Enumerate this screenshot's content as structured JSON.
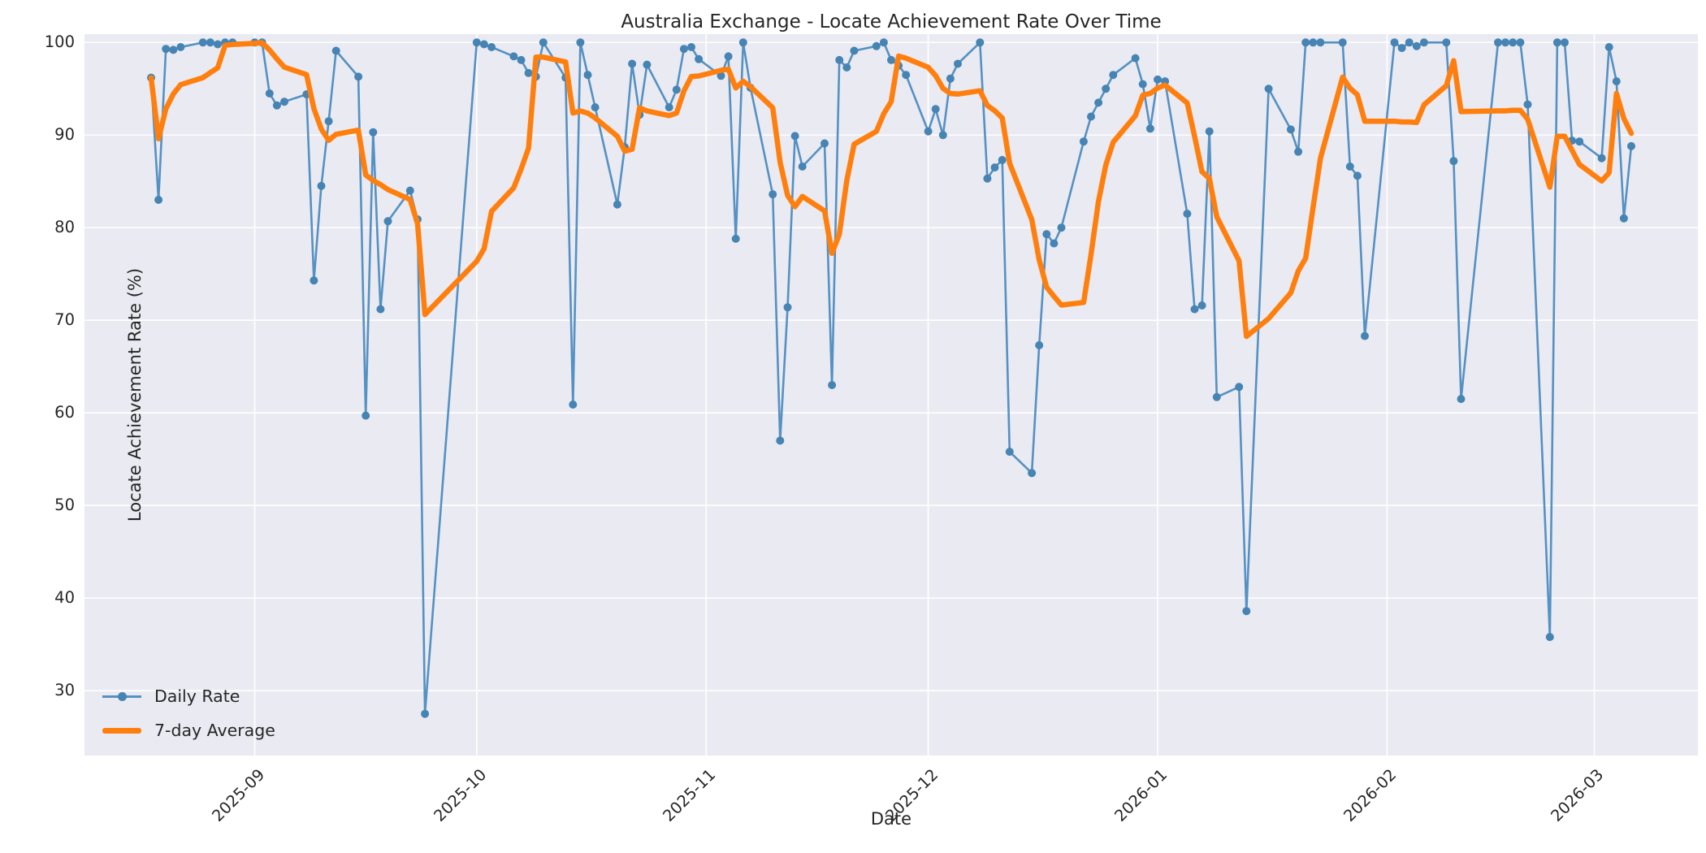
{
  "figure": {
    "background": "#ffffff",
    "plot_background": "#eaeaf2",
    "grid_color": "#ffffff",
    "text_color": "#262626",
    "daily_color": "#5591c2",
    "daily_marker_color": "#4684b4",
    "avg_color": "#ff7f0e"
  },
  "chart_data": {
    "type": "line",
    "title": "Australia Exchange - Locate Achievement Rate Over Time",
    "xlabel": "Date",
    "ylabel": "Locate Achievement Rate (%)",
    "grid": true,
    "legend_position": "lower left",
    "ylim": [
      23.0,
      100.9
    ],
    "xlim_dates": [
      "2025-08-09",
      "2026-03-15"
    ],
    "y_ticks": [
      30,
      40,
      50,
      60,
      70,
      80,
      90,
      100
    ],
    "x_ticks": [
      {
        "date": "2025-09-01",
        "label": "2025-09"
      },
      {
        "date": "2025-10-01",
        "label": "2025-10"
      },
      {
        "date": "2025-11-01",
        "label": "2025-11"
      },
      {
        "date": "2025-12-01",
        "label": "2025-12"
      },
      {
        "date": "2026-01-01",
        "label": "2026-01"
      },
      {
        "date": "2026-02-01",
        "label": "2026-02"
      },
      {
        "date": "2026-03-01",
        "label": "2026-03"
      }
    ],
    "series": [
      {
        "name": "Daily Rate",
        "style": "line_with_markers",
        "dates": [
          "2025-08-18",
          "2025-08-19",
          "2025-08-20",
          "2025-08-21",
          "2025-08-22",
          "2025-08-25",
          "2025-08-26",
          "2025-08-27",
          "2025-08-28",
          "2025-08-29",
          "2025-09-01",
          "2025-09-02",
          "2025-09-03",
          "2025-09-04",
          "2025-09-05",
          "2025-09-08",
          "2025-09-09",
          "2025-09-10",
          "2025-09-11",
          "2025-09-12",
          "2025-09-15",
          "2025-09-16",
          "2025-09-17",
          "2025-09-18",
          "2025-09-19",
          "2025-09-22",
          "2025-09-23",
          "2025-09-24",
          "2025-10-01",
          "2025-10-02",
          "2025-10-03",
          "2025-10-06",
          "2025-10-07",
          "2025-10-08",
          "2025-10-09",
          "2025-10-10",
          "2025-10-13",
          "2025-10-14",
          "2025-10-15",
          "2025-10-16",
          "2025-10-17",
          "2025-10-20",
          "2025-10-21",
          "2025-10-22",
          "2025-10-23",
          "2025-10-24",
          "2025-10-27",
          "2025-10-28",
          "2025-10-29",
          "2025-10-30",
          "2025-10-31",
          "2025-11-03",
          "2025-11-04",
          "2025-11-05",
          "2025-11-06",
          "2025-11-07",
          "2025-11-10",
          "2025-11-11",
          "2025-11-12",
          "2025-11-13",
          "2025-11-14",
          "2025-11-17",
          "2025-11-18",
          "2025-11-19",
          "2025-11-20",
          "2025-11-21",
          "2025-11-24",
          "2025-11-25",
          "2025-11-26",
          "2025-11-27",
          "2025-11-28",
          "2025-12-01",
          "2025-12-02",
          "2025-12-03",
          "2025-12-04",
          "2025-12-05",
          "2025-12-08",
          "2025-12-09",
          "2025-12-10",
          "2025-12-11",
          "2025-12-12",
          "2025-12-15",
          "2025-12-16",
          "2025-12-17",
          "2025-12-18",
          "2025-12-19",
          "2025-12-22",
          "2025-12-23",
          "2025-12-24",
          "2025-12-25",
          "2025-12-26",
          "2025-12-29",
          "2025-12-30",
          "2025-12-31",
          "2026-01-01",
          "2026-01-02",
          "2026-01-05",
          "2026-01-06",
          "2026-01-07",
          "2026-01-08",
          "2026-01-09",
          "2026-01-12",
          "2026-01-13",
          "2026-01-16",
          "2026-01-19",
          "2026-01-20",
          "2026-01-21",
          "2026-01-22",
          "2026-01-23",
          "2026-01-26",
          "2026-01-27",
          "2026-01-28",
          "2026-01-29",
          "2026-02-02",
          "2026-02-03",
          "2026-02-04",
          "2026-02-05",
          "2026-02-06",
          "2026-02-09",
          "2026-02-10",
          "2026-02-11",
          "2026-02-16",
          "2026-02-17",
          "2026-02-18",
          "2026-02-19",
          "2026-02-20",
          "2026-02-23",
          "2026-02-24",
          "2026-02-25",
          "2026-02-26",
          "2026-02-27",
          "2026-03-02",
          "2026-03-03",
          "2026-03-04",
          "2026-03-05",
          "2026-03-06"
        ],
        "values": [
          96.2,
          83.0,
          99.3,
          99.2,
          99.5,
          100,
          100,
          99.8,
          100,
          100,
          100,
          100,
          94.5,
          93.2,
          93.6,
          94.4,
          74.3,
          84.5,
          91.5,
          99.1,
          96.3,
          59.7,
          90.3,
          71.2,
          80.7,
          84.0,
          80.9,
          27.5,
          100,
          99.8,
          99.5,
          98.5,
          98.1,
          96.7,
          96.3,
          100,
          96.2,
          60.9,
          100,
          96.5,
          93.0,
          82.5,
          88.7,
          97.7,
          92.2,
          97.6,
          93.0,
          94.9,
          99.3,
          99.5,
          98.2,
          96.4,
          98.5,
          78.8,
          100,
          95.1,
          83.6,
          57.0,
          71.4,
          89.9,
          86.6,
          89.1,
          63.0,
          98.1,
          97.3,
          99.1,
          99.6,
          100,
          98.1,
          97.5,
          96.5,
          90.4,
          92.8,
          90.0,
          96.1,
          97.7,
          100,
          85.3,
          86.5,
          87.3,
          55.8,
          53.5,
          67.3,
          79.3,
          78.3,
          80.0,
          89.3,
          92.0,
          93.5,
          95.0,
          96.5,
          98.3,
          95.5,
          90.7,
          96.0,
          95.8,
          81.5,
          71.2,
          71.6,
          90.4,
          61.7,
          62.8,
          38.6,
          95.0,
          90.6,
          88.2,
          100,
          100,
          100,
          100,
          86.6,
          85.6,
          68.3,
          100,
          99.4,
          100,
          99.6,
          100,
          100,
          87.2,
          61.5,
          100,
          100,
          100,
          100,
          93.3,
          35.8,
          100,
          100,
          89.4,
          89.3,
          87.5,
          99.5,
          95.8,
          81.0,
          88.8
        ]
      },
      {
        "name": "7-day Average",
        "style": "thick_line",
        "derived": "rolling_mean_of_daily",
        "window": 7
      }
    ]
  }
}
